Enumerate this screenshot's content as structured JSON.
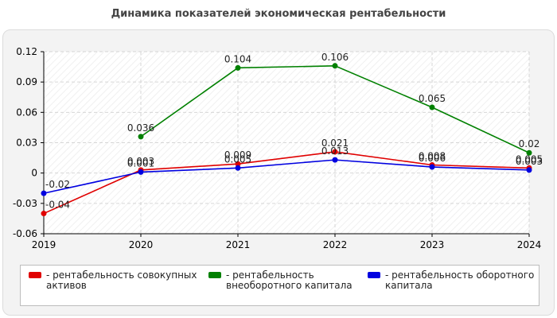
{
  "page_title": "Динамика показателей экономическая рентабельности",
  "chart_data": {
    "type": "line",
    "title": "Динамика показателей экономическая рентабельности",
    "x": [
      "2019",
      "2020",
      "2021",
      "2022",
      "2023",
      "2024"
    ],
    "y_ticks": [
      "0.12",
      "0.09",
      "0.06",
      "0.03",
      "0",
      "-0.03",
      "-0.06"
    ],
    "y_tick_values": [
      0.12,
      0.09,
      0.06,
      0.03,
      0,
      -0.03,
      -0.06
    ],
    "ylim": [
      -0.06,
      0.12
    ],
    "grid": true,
    "legend_position": "bottom",
    "series": [
      {
        "name": "- рентабельность совокупных активов",
        "legend_lines": [
          "- рентабельность совокупных",
          "активов"
        ],
        "color": "#e00000",
        "values": [
          -0.04,
          0.003,
          0.009,
          0.021,
          0.008,
          0.005
        ],
        "labels": [
          "-0.04",
          "0.003",
          "0.009",
          "0.021",
          "0.008",
          "0.005"
        ]
      },
      {
        "name": "- рентабельность внеоборотного капитала",
        "legend_lines": [
          "- рентабельность",
          "внеоборотного капитала"
        ],
        "color": "#008000",
        "values": [
          null,
          0.036,
          0.104,
          0.106,
          0.065,
          0.02
        ],
        "labels": [
          "",
          "0.036",
          "0.104",
          "0.106",
          "0.065",
          "0.02"
        ]
      },
      {
        "name": "- рентабельность оборотного капитала",
        "legend_lines": [
          "- рентабельность оборотного",
          "капитала"
        ],
        "color": "#0000e0",
        "values": [
          -0.02,
          0.001,
          0.005,
          0.013,
          0.006,
          0.003
        ],
        "labels": [
          "-0.02",
          "0.001",
          "0.005",
          "0.013",
          "0.006",
          "0.003"
        ]
      }
    ]
  }
}
